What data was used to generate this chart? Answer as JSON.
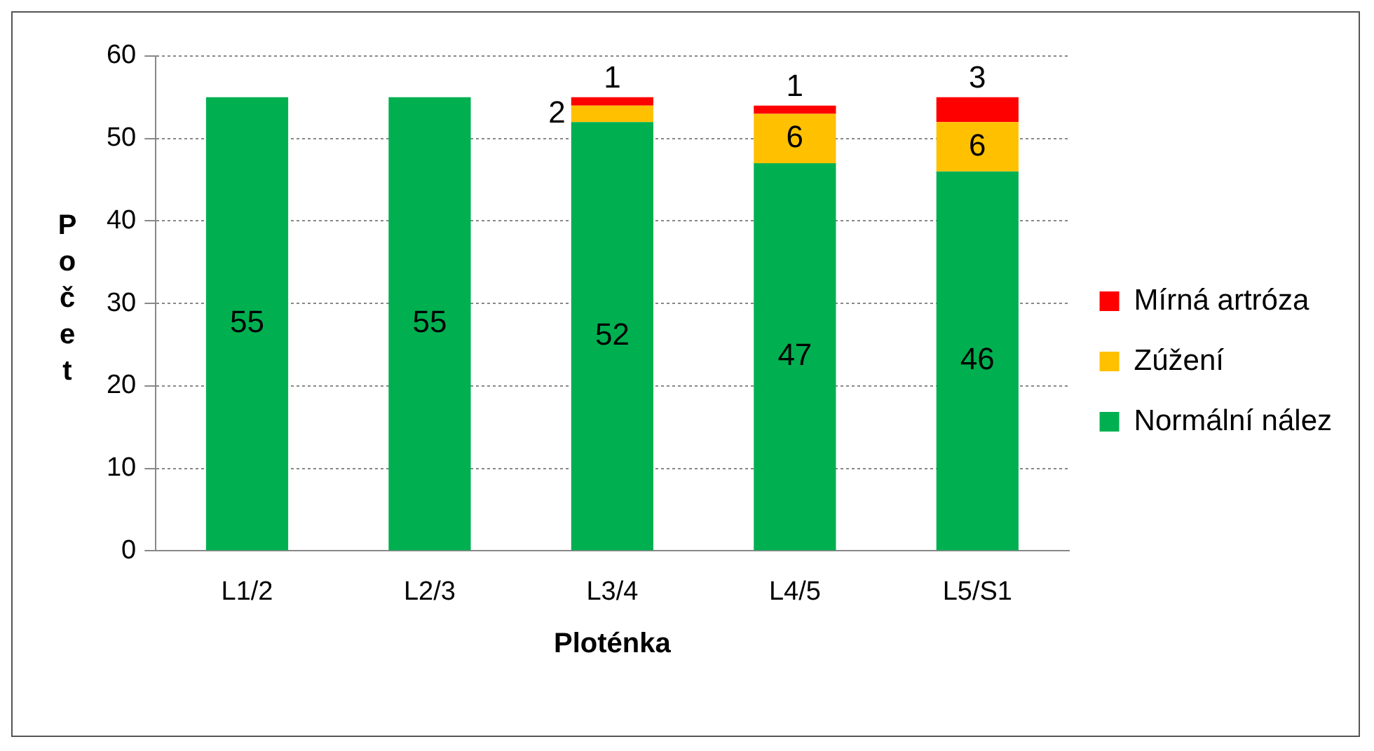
{
  "chart_data": {
    "type": "bar",
    "stacked": true,
    "xlabel": "Ploténka",
    "ylabel": "Počet",
    "categories": [
      "L1/2",
      "L2/3",
      "L3/4",
      "L4/5",
      "L5/S1"
    ],
    "series": [
      {
        "name": "Normální nález",
        "color": "#00b050",
        "values": [
          55,
          55,
          52,
          47,
          46
        ]
      },
      {
        "name": "Zúžení",
        "color": "#ffc000",
        "values": [
          null,
          null,
          2,
          6,
          6
        ]
      },
      {
        "name": "Mírná artróza",
        "color": "#ff0000",
        "values": [
          null,
          null,
          1,
          1,
          3
        ]
      }
    ],
    "ylim": [
      0,
      60
    ],
    "yticks": [
      0,
      10,
      20,
      30,
      40,
      50,
      60
    ],
    "grid": "y",
    "legend": "right",
    "data_labels": true
  }
}
